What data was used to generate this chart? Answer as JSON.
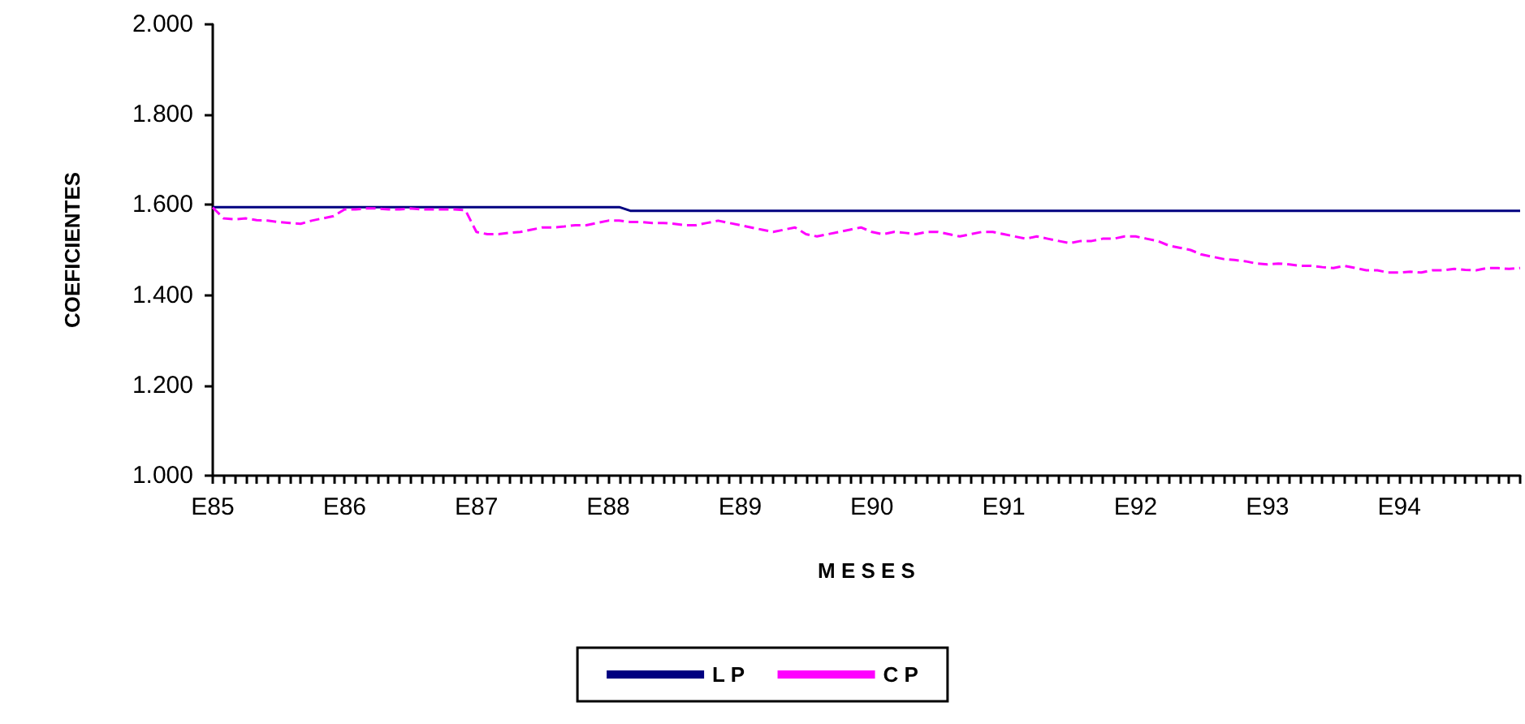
{
  "chart_data": {
    "type": "line",
    "xlabel": "M E S E S",
    "ylabel": "COEFICIENTES",
    "categories": [
      "E85",
      null,
      null,
      null,
      null,
      null,
      null,
      null,
      null,
      null,
      null,
      null,
      "E86",
      null,
      null,
      null,
      null,
      null,
      null,
      null,
      null,
      null,
      null,
      null,
      "E87",
      null,
      null,
      null,
      null,
      null,
      null,
      null,
      null,
      null,
      null,
      null,
      "E88",
      null,
      null,
      null,
      null,
      null,
      null,
      null,
      null,
      null,
      null,
      null,
      "E89",
      null,
      null,
      null,
      null,
      null,
      null,
      null,
      null,
      null,
      null,
      null,
      "E90",
      null,
      null,
      null,
      null,
      null,
      null,
      null,
      null,
      null,
      null,
      null,
      "E91",
      null,
      null,
      null,
      null,
      null,
      null,
      null,
      null,
      null,
      null,
      null,
      "E92",
      null,
      null,
      null,
      null,
      null,
      null,
      null,
      null,
      null,
      null,
      null,
      "E93",
      null,
      null,
      null,
      null,
      null,
      null,
      null,
      null,
      null,
      null,
      null,
      "E94",
      null,
      null,
      null,
      null,
      null,
      null,
      null,
      null,
      null,
      null,
      null
    ],
    "series": [
      {
        "name": "L P",
        "color": "#000080",
        "line_style": "solid",
        "values": [
          1.595,
          1.595,
          1.595,
          1.595,
          1.595,
          1.595,
          1.595,
          1.595,
          1.595,
          1.595,
          1.595,
          1.595,
          1.595,
          1.595,
          1.595,
          1.595,
          1.595,
          1.595,
          1.595,
          1.595,
          1.595,
          1.595,
          1.595,
          1.595,
          1.595,
          1.595,
          1.595,
          1.595,
          1.595,
          1.595,
          1.595,
          1.595,
          1.595,
          1.595,
          1.595,
          1.595,
          1.595,
          1.595,
          1.587,
          1.587,
          1.587,
          1.587,
          1.587,
          1.587,
          1.587,
          1.587,
          1.587,
          1.587,
          1.587,
          1.587,
          1.587,
          1.587,
          1.587,
          1.587,
          1.587,
          1.587,
          1.587,
          1.587,
          1.587,
          1.587,
          1.587,
          1.587,
          1.587,
          1.587,
          1.587,
          1.587,
          1.587,
          1.587,
          1.587,
          1.587,
          1.587,
          1.587,
          1.587,
          1.587,
          1.587,
          1.587,
          1.587,
          1.587,
          1.587,
          1.587,
          1.587,
          1.587,
          1.587,
          1.587,
          1.587,
          1.587,
          1.587,
          1.587,
          1.587,
          1.587,
          1.587,
          1.587,
          1.587,
          1.587,
          1.587,
          1.587,
          1.587,
          1.587,
          1.587,
          1.587,
          1.587,
          1.587,
          1.587,
          1.587,
          1.587,
          1.587,
          1.587,
          1.587,
          1.587,
          1.587,
          1.587,
          1.587,
          1.587,
          1.587,
          1.587,
          1.587,
          1.587,
          1.587,
          1.587,
          1.587
        ]
      },
      {
        "name": "C P",
        "color": "#ff00ff",
        "line_style": "dashed",
        "values": [
          1.594,
          1.57,
          1.568,
          1.57,
          1.566,
          1.565,
          1.562,
          1.56,
          1.558,
          1.565,
          1.57,
          1.575,
          1.59,
          1.59,
          1.592,
          1.592,
          1.59,
          1.59,
          1.592,
          1.59,
          1.59,
          1.59,
          1.59,
          1.588,
          1.54,
          1.535,
          1.535,
          1.538,
          1.54,
          1.545,
          1.55,
          1.55,
          1.552,
          1.555,
          1.555,
          1.56,
          1.565,
          1.565,
          1.562,
          1.562,
          1.56,
          1.56,
          1.558,
          1.555,
          1.555,
          1.56,
          1.565,
          1.56,
          1.555,
          1.55,
          1.545,
          1.54,
          1.545,
          1.55,
          1.535,
          1.53,
          1.535,
          1.54,
          1.545,
          1.55,
          1.54,
          1.535,
          1.54,
          1.538,
          1.535,
          1.54,
          1.54,
          1.535,
          1.53,
          1.535,
          1.54,
          1.54,
          1.535,
          1.53,
          1.525,
          1.53,
          1.525,
          1.52,
          1.515,
          1.52,
          1.52,
          1.525,
          1.525,
          1.53,
          1.53,
          1.525,
          1.52,
          1.51,
          1.505,
          1.5,
          1.49,
          1.485,
          1.48,
          1.478,
          1.475,
          1.47,
          1.468,
          1.47,
          1.468,
          1.465,
          1.465,
          1.462,
          1.46,
          1.465,
          1.46,
          1.455,
          1.455,
          1.45,
          1.45,
          1.452,
          1.45,
          1.455,
          1.455,
          1.458,
          1.456,
          1.455,
          1.46,
          1.46,
          1.458,
          1.46
        ]
      }
    ],
    "ylim": [
      1,
      2
    ],
    "yticks": [
      {
        "value": 1,
        "label": "1.000"
      },
      {
        "value": 1.2,
        "label": "1.200"
      },
      {
        "value": 1.4,
        "label": "1.400"
      },
      {
        "value": 1.6,
        "label": "1.600"
      },
      {
        "value": 1.8,
        "label": "1.800"
      },
      {
        "value": 2,
        "label": "2.000"
      }
    ],
    "grid": false,
    "legend": "bottom",
    "marker": "none"
  }
}
